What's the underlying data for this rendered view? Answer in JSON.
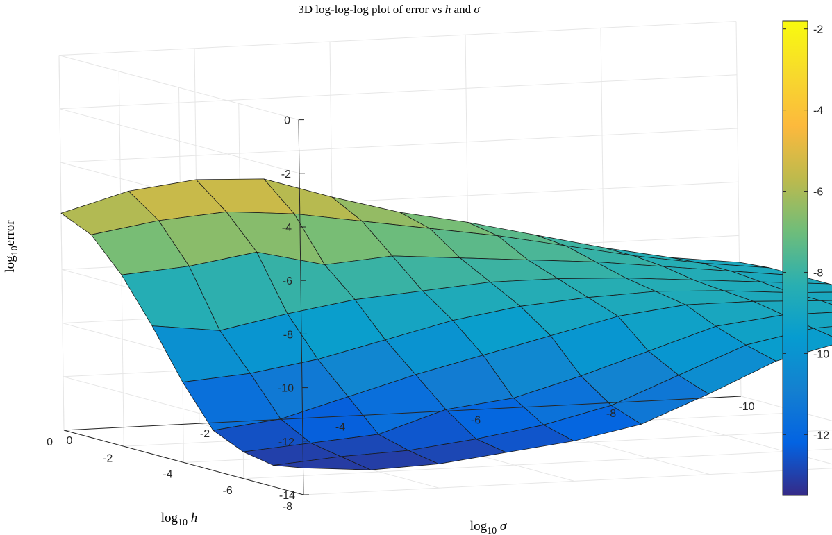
{
  "chart_data": {
    "type": "surface3d",
    "title_parts": [
      "3D log-log-log plot of error vs ",
      "h",
      " and ",
      "σ"
    ],
    "xlabel_parts": [
      "log",
      "10",
      " σ"
    ],
    "ylabel_parts": [
      "log",
      "10",
      " h"
    ],
    "zlabel_parts": [
      "log",
      "10",
      "error"
    ],
    "x_ticks": [
      "0",
      "-2",
      "-4",
      "-6",
      "-8",
      "-10"
    ],
    "y_ticks": [
      "0",
      "-2",
      "-4",
      "-6",
      "-8"
    ],
    "z_ticks": [
      "0",
      "-2",
      "-4",
      "-6",
      "-8",
      "-10",
      "-12",
      "-14"
    ],
    "colorbar_ticks": [
      "-2",
      "-4",
      "-6",
      "-8",
      "-10",
      "-12"
    ],
    "xlim": [
      0,
      -10
    ],
    "ylim": [
      0,
      -8
    ],
    "zlim": [
      -14,
      0
    ],
    "clim": [
      -13.5,
      -1.8
    ],
    "colormap": "parula",
    "grid": true,
    "sigma_values": [
      0,
      -1,
      -2,
      -3,
      -4,
      -5,
      -6,
      -7,
      -8,
      -9,
      -10
    ],
    "h_values": [
      0,
      -1,
      -2,
      -3,
      -4,
      -5,
      -6,
      -7,
      -8
    ],
    "z_rows": [
      [
        -5.9,
        -5.2,
        -4.9,
        -5.0,
        -5.8,
        -6.5,
        -7.0,
        -7.6,
        -8.2,
        -8.7,
        -9.0
      ],
      [
        -6.4,
        -6.0,
        -5.8,
        -6.0,
        -6.4,
        -6.8,
        -7.2,
        -7.7,
        -8.2,
        -8.6,
        -8.9
      ],
      [
        -7.6,
        -7.4,
        -7.0,
        -7.6,
        -7.4,
        -7.6,
        -7.8,
        -8.0,
        -8.3,
        -8.6,
        -8.9
      ],
      [
        -9.2,
        -9.5,
        -9.0,
        -8.6,
        -8.4,
        -8.2,
        -8.2,
        -8.3,
        -8.5,
        -8.7,
        -8.9
      ],
      [
        -11.0,
        -10.8,
        -10.4,
        -9.8,
        -9.2,
        -8.8,
        -8.6,
        -8.5,
        -8.6,
        -8.8,
        -8.9
      ],
      [
        -12.5,
        -12.2,
        -11.5,
        -10.8,
        -10.2,
        -9.6,
        -9.0,
        -8.7,
        -8.7,
        -8.8,
        -8.9
      ],
      [
        -13.0,
        -12.8,
        -12.6,
        -11.8,
        -11.5,
        -10.8,
        -10.0,
        -9.2,
        -8.9,
        -8.9,
        -9.0
      ],
      [
        -13.2,
        -13.0,
        -12.9,
        -12.6,
        -12.2,
        -11.6,
        -10.6,
        -9.6,
        -9.1,
        -9.0,
        -9.0
      ],
      [
        -13.0,
        -13.2,
        -13.1,
        -12.8,
        -12.5,
        -12.0,
        -11.0,
        -9.9,
        -9.3,
        -9.1,
        -9.0
      ]
    ]
  }
}
